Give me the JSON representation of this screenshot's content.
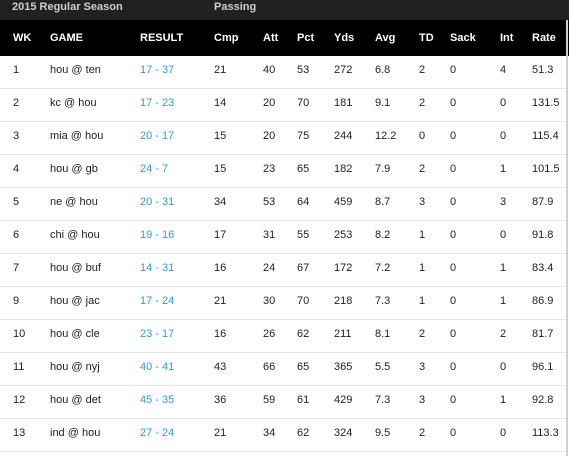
{
  "band": {
    "season_label": "2015 Regular Season",
    "group_label": "Passing"
  },
  "columns": {
    "wk": "WK",
    "game": "GAME",
    "result": "RESULT",
    "cmp": "Cmp",
    "att": "Att",
    "pct": "Pct",
    "yds": "Yds",
    "avg": "Avg",
    "td": "TD",
    "sack": "Sack",
    "int": "Int",
    "rate": "Rate"
  },
  "rows": [
    {
      "wk": "1",
      "game": "hou @ ten",
      "result": "17 - 37",
      "cmp": "21",
      "att": "40",
      "pct": "53",
      "yds": "272",
      "avg": "6.8",
      "td": "2",
      "sack": "0",
      "int": "4",
      "rate": "51.3"
    },
    {
      "wk": "2",
      "game": "kc @ hou",
      "result": "17 - 23",
      "cmp": "14",
      "att": "20",
      "pct": "70",
      "yds": "181",
      "avg": "9.1",
      "td": "2",
      "sack": "0",
      "int": "0",
      "rate": "131.5"
    },
    {
      "wk": "3",
      "game": "mia @ hou",
      "result": "20 - 17",
      "cmp": "15",
      "att": "20",
      "pct": "75",
      "yds": "244",
      "avg": "12.2",
      "td": "0",
      "sack": "0",
      "int": "0",
      "rate": "115.4"
    },
    {
      "wk": "4",
      "game": "hou @ gb",
      "result": "24 - 7",
      "cmp": "15",
      "att": "23",
      "pct": "65",
      "yds": "182",
      "avg": "7.9",
      "td": "2",
      "sack": "0",
      "int": "1",
      "rate": "101.5"
    },
    {
      "wk": "5",
      "game": "ne @ hou",
      "result": "20 - 31",
      "cmp": "34",
      "att": "53",
      "pct": "64",
      "yds": "459",
      "avg": "8.7",
      "td": "3",
      "sack": "0",
      "int": "3",
      "rate": "87.9"
    },
    {
      "wk": "6",
      "game": "chi @ hou",
      "result": "19 - 16",
      "cmp": "17",
      "att": "31",
      "pct": "55",
      "yds": "253",
      "avg": "8.2",
      "td": "1",
      "sack": "0",
      "int": "0",
      "rate": "91.8"
    },
    {
      "wk": "7",
      "game": "hou @ buf",
      "result": "14 - 31",
      "cmp": "16",
      "att": "24",
      "pct": "67",
      "yds": "172",
      "avg": "7.2",
      "td": "1",
      "sack": "0",
      "int": "1",
      "rate": "83.4"
    },
    {
      "wk": "9",
      "game": "hou @ jac",
      "result": "17 - 24",
      "cmp": "21",
      "att": "30",
      "pct": "70",
      "yds": "218",
      "avg": "7.3",
      "td": "1",
      "sack": "0",
      "int": "1",
      "rate": "86.9"
    },
    {
      "wk": "10",
      "game": "hou @ cle",
      "result": "23 - 17",
      "cmp": "16",
      "att": "26",
      "pct": "62",
      "yds": "211",
      "avg": "8.1",
      "td": "2",
      "sack": "0",
      "int": "2",
      "rate": "81.7"
    },
    {
      "wk": "11",
      "game": "hou @ nyj",
      "result": "40 - 41",
      "cmp": "43",
      "att": "66",
      "pct": "65",
      "yds": "365",
      "avg": "5.5",
      "td": "3",
      "sack": "0",
      "int": "0",
      "rate": "96.1"
    },
    {
      "wk": "12",
      "game": "hou @ det",
      "result": "45 - 35",
      "cmp": "36",
      "att": "59",
      "pct": "61",
      "yds": "429",
      "avg": "7.3",
      "td": "3",
      "sack": "0",
      "int": "1",
      "rate": "92.8"
    },
    {
      "wk": "13",
      "game": "ind @ hou",
      "result": "27 - 24",
      "cmp": "21",
      "att": "34",
      "pct": "62",
      "yds": "324",
      "avg": "9.5",
      "td": "2",
      "sack": "0",
      "int": "0",
      "rate": "113.3"
    }
  ],
  "colors": {
    "band_bg": "#1f2123",
    "header_bg": "#000000",
    "result_link": "#2e9dd4",
    "row_divider": "#e3e3e3"
  }
}
